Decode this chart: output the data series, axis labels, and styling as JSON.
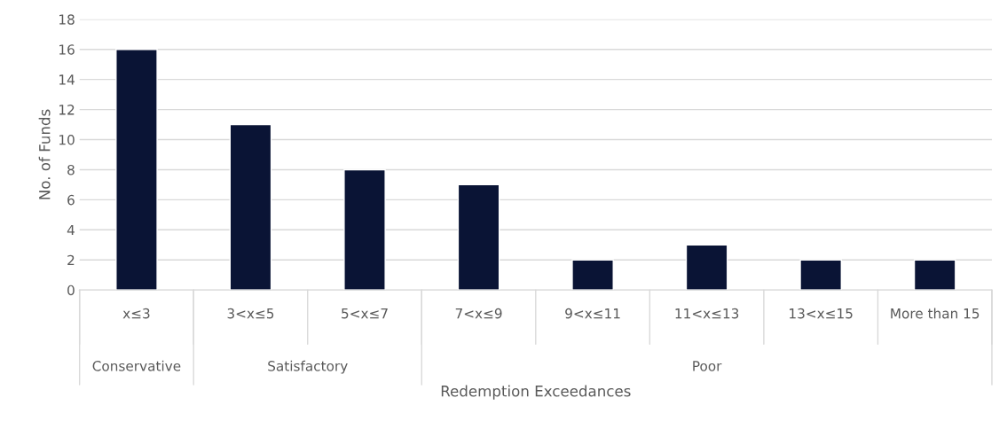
{
  "chart_data": {
    "type": "bar",
    "xlabel": "Redemption Exceedances",
    "ylabel": "No. of Funds",
    "categories": [
      "x≤3",
      "3<x≤5",
      "5<x≤7",
      "7<x≤9",
      "9<x≤11",
      "11<x≤13",
      "13<x≤15",
      "More than 15"
    ],
    "values": [
      16,
      11,
      8,
      7,
      2,
      3,
      2,
      2
    ],
    "color": "#0a1435",
    "ylim": [
      0,
      18
    ],
    "yticks": [
      0,
      2,
      4,
      6,
      8,
      10,
      12,
      14,
      16,
      18
    ],
    "grid": "y",
    "annotations": [
      "Conservative",
      "Satisfactory",
      "Poor"
    ]
  }
}
